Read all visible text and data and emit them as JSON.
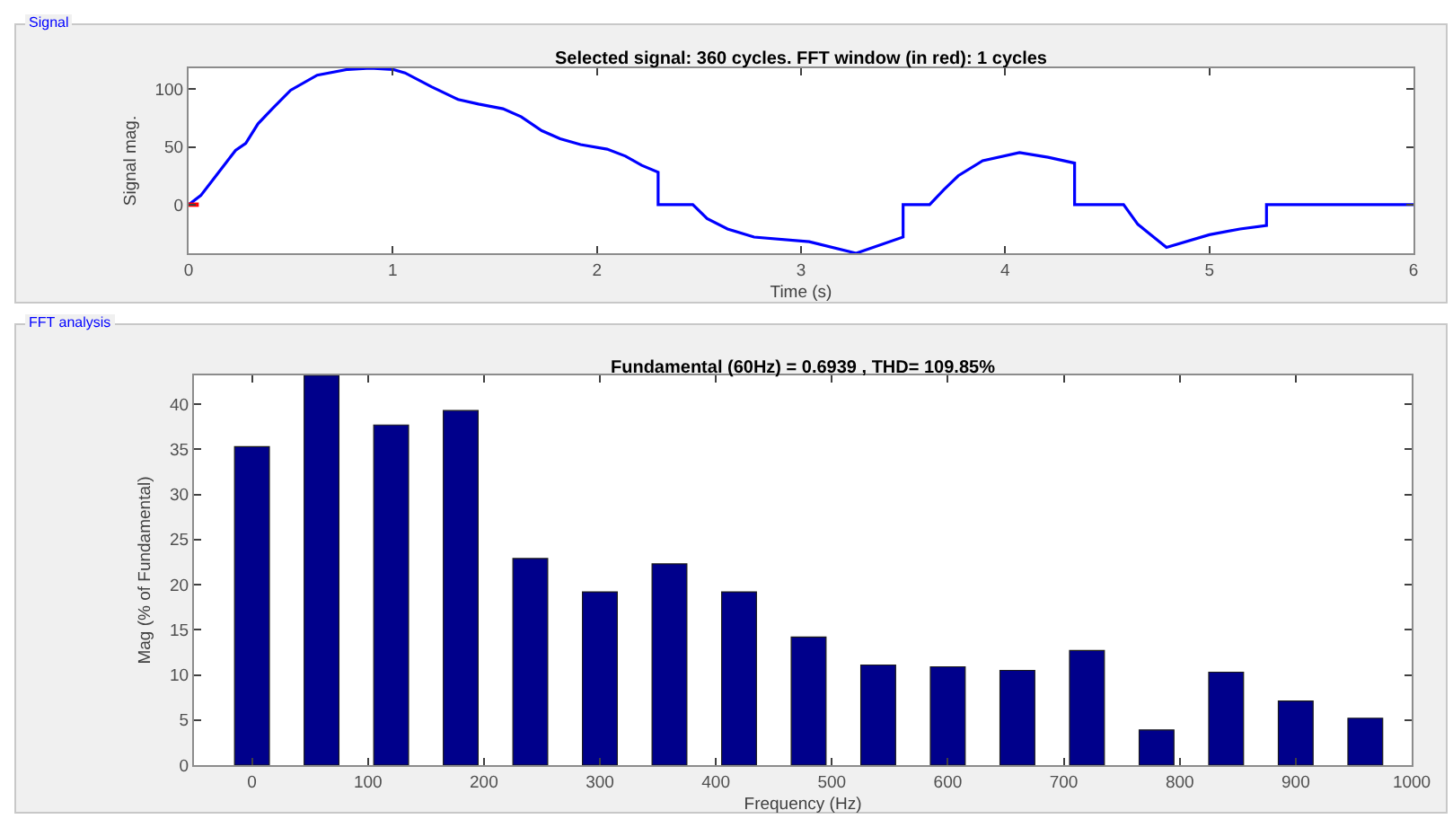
{
  "chart_data": [
    {
      "type": "line",
      "title": "Selected signal: 360 cycles. FFT window (in red): 1 cycles",
      "xlabel": "Time (s)",
      "ylabel": "Signal mag.",
      "annotations": [
        "Signal"
      ],
      "series": [
        {
          "color": "#0000ff",
          "x": [
            0,
            0.06,
            0.13,
            0.23,
            0.28,
            0.34,
            0.41,
            0.5,
            0.63,
            0.78,
            0.89,
            1.0,
            1.06,
            1.19,
            1.32,
            1.42,
            1.54,
            1.63,
            1.73,
            1.82,
            1.92,
            2.05,
            2.14,
            2.22,
            2.3,
            2.3,
            2.47,
            2.54,
            2.64,
            2.77,
            3.04,
            3.27,
            3.5,
            3.5,
            3.63,
            3.7,
            3.77,
            3.89,
            4.07,
            4.21,
            4.34,
            4.34,
            4.58,
            4.65,
            4.79,
            5.0,
            5.15,
            5.28,
            5.28,
            6
          ],
          "values": [
            0,
            8,
            24,
            47,
            53,
            70,
            83,
            99,
            112,
            117,
            118,
            117,
            114,
            102,
            91,
            87,
            83,
            76,
            64,
            57,
            52,
            48,
            42,
            34,
            28,
            0,
            0,
            -12,
            -21,
            -28,
            -32,
            -42,
            -28,
            0,
            0,
            13,
            25,
            38,
            45,
            41,
            36,
            0,
            0,
            -17,
            -37,
            -26,
            -21,
            -18,
            0,
            0
          ]
        },
        {
          "color": "#ff0000",
          "x": [
            0,
            0.05
          ],
          "values": [
            0,
            0
          ]
        }
      ],
      "xlim": [
        0,
        6
      ],
      "ylim": [
        -42,
        118
      ],
      "xticks": [
        0,
        1,
        2,
        3,
        4,
        5,
        6
      ],
      "yticks": [
        0,
        50,
        100
      ],
      "grid": false,
      "marker": "none",
      "line_style": "solid"
    },
    {
      "type": "bar",
      "title": "Fundamental (60Hz) = 0.6939 , THD= 109.85%",
      "xlabel": "Frequency (Hz)",
      "ylabel": "Mag (% of Fundamental)",
      "annotations": [
        "FFT analysis"
      ],
      "x": [
        0,
        60,
        120,
        180,
        240,
        300,
        360,
        420,
        480,
        540,
        600,
        660,
        720,
        780,
        840,
        900,
        960
      ],
      "values": [
        35.3,
        43.2,
        37.7,
        39.3,
        22.9,
        19.2,
        22.3,
        19.2,
        14.2,
        11.1,
        10.9,
        10.5,
        12.7,
        3.9,
        10.3,
        7.1,
        5.2
      ],
      "color": "#00008b",
      "xlim": [
        -50,
        1000
      ],
      "ylim": [
        0,
        43.2
      ],
      "xticks": [
        0,
        100,
        200,
        300,
        400,
        500,
        600,
        700,
        800,
        900,
        1000
      ],
      "yticks": [
        0,
        5,
        10,
        15,
        20,
        25,
        30,
        35,
        40
      ],
      "grid": false
    }
  ]
}
